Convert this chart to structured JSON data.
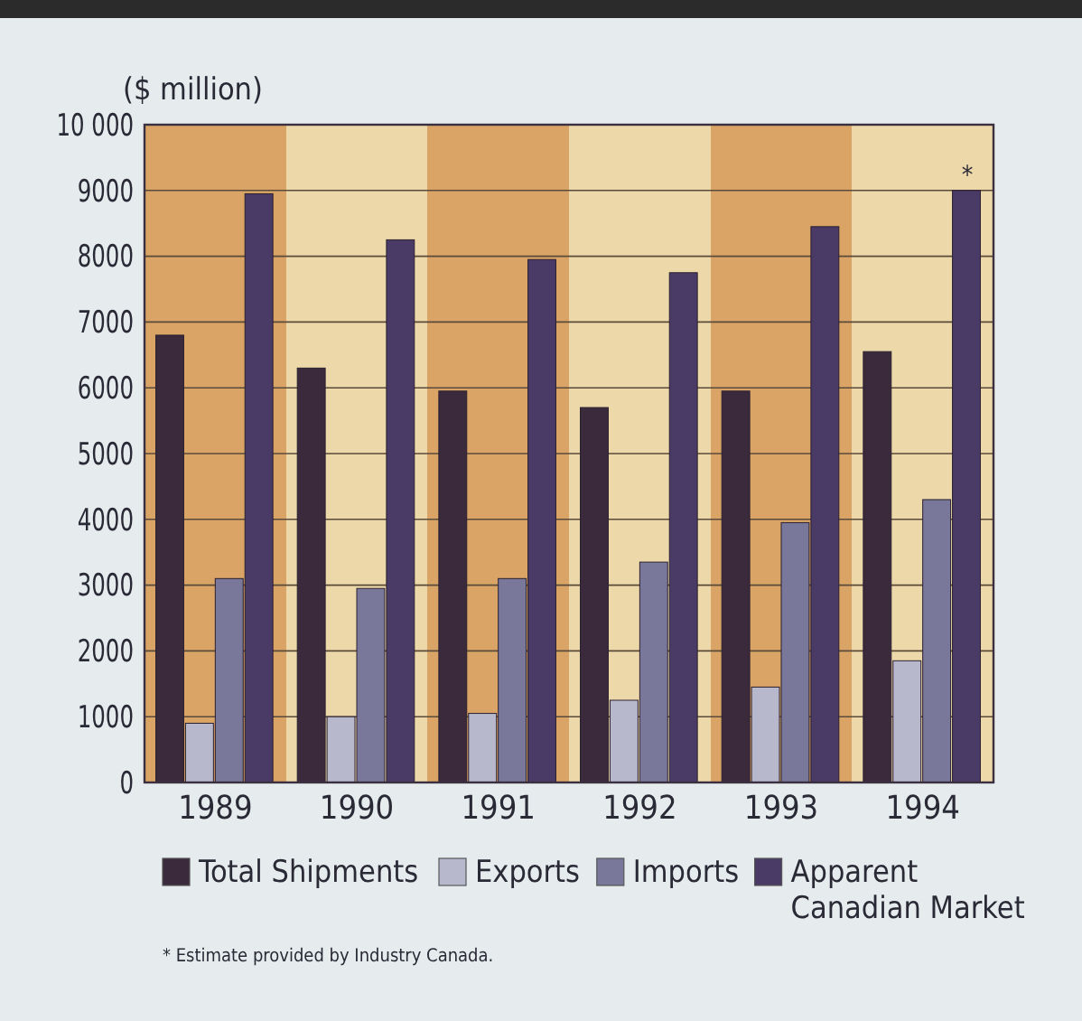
{
  "chart_data": {
    "type": "bar",
    "ylabel": "($ million)",
    "categories": [
      "1989",
      "1990",
      "1991",
      "1992",
      "1993",
      "1994"
    ],
    "series": [
      {
        "name": "Total Shipments",
        "color": "#3a2a3c",
        "values": [
          6800,
          6300,
          5950,
          5700,
          5950,
          6550
        ]
      },
      {
        "name": "Exports",
        "color": "#b8b8cc",
        "values": [
          900,
          1000,
          1050,
          1250,
          1450,
          1850
        ]
      },
      {
        "name": "Imports",
        "color": "#79789a",
        "values": [
          3100,
          2950,
          3100,
          3350,
          3950,
          4300
        ]
      },
      {
        "name": "Apparent Canadian Market",
        "color": "#4a3a66",
        "values": [
          8950,
          8250,
          7950,
          7750,
          8450,
          9000
        ]
      }
    ],
    "ylim": [
      0,
      10000
    ],
    "yticks": [
      0,
      1000,
      2000,
      3000,
      4000,
      5000,
      6000,
      7000,
      8000,
      9000,
      {
        "value": 10000,
        "label": "10 000"
      }
    ],
    "grid": "y",
    "legend": "bottom",
    "annotations": [
      "*",
      "* Estimate provided by Industry Canada."
    ]
  }
}
